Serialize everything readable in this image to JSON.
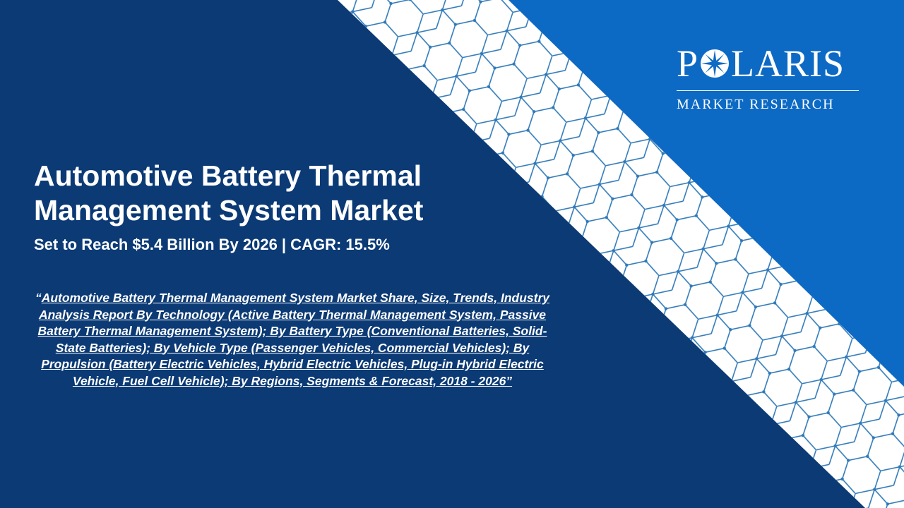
{
  "colors": {
    "dark_navy": "#0b3a75",
    "bright_blue": "#0d6ac4",
    "white": "#ffffff",
    "pattern_line": "#2f79b8"
  },
  "logo": {
    "letter_p": "P",
    "letters_rest": "LARIS",
    "star_icon": "compass-star-icon",
    "subtitle": "MARKET RESEARCH"
  },
  "headline": {
    "title": "Automotive Battery Thermal Management System Market",
    "subtitle": "Set to Reach $5.4 Billion By 2026 | CAGR: 15.5%"
  },
  "description": {
    "open_quote": "“",
    "text": "Automotive Battery Thermal Management System Market Share, Size, Trends, Industry Analysis Report By Technology (Active Battery Thermal Management System, Passive Battery Thermal Management System); By Battery Type (Conventional Batteries, Solid-State Batteries); By Vehicle Type (Passenger Vehicles, Commercial Vehicles); By Propulsion (Battery Electric Vehicles, Hybrid Electric Vehicles, Plug-in Hybrid Electric Vehicle, Fuel Cell Vehicle); By Regions, Segments & Forecast, 2018 - 2026”"
  }
}
